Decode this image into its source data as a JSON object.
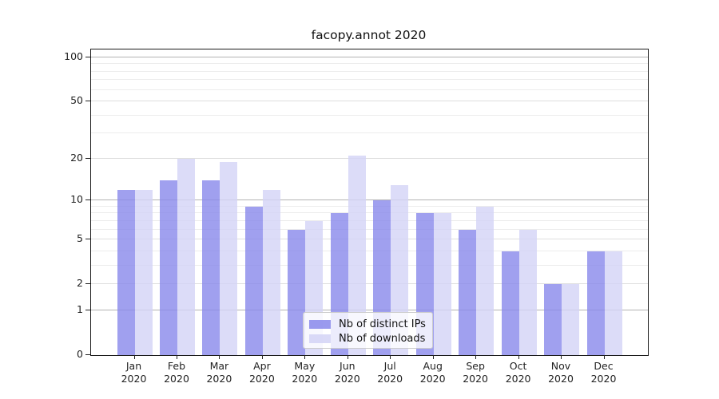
{
  "chart": {
    "title": "facopy.annot 2020"
  },
  "chart_data": {
    "type": "bar",
    "title": "facopy.annot 2020",
    "categories": [
      "Jan",
      "Feb",
      "Mar",
      "Apr",
      "May",
      "Jun",
      "Jul",
      "Aug",
      "Sep",
      "Oct",
      "Nov",
      "Dec"
    ],
    "category_year": "2020",
    "series": [
      {
        "name": "Nb of distinct IPs",
        "color": "#8888eb",
        "values": [
          12,
          14,
          14,
          9,
          6,
          8,
          10,
          8,
          6,
          4,
          2,
          4
        ]
      },
      {
        "name": "Nb of downloads",
        "color": "#d3d3f6",
        "values": [
          12,
          20,
          19,
          12,
          7,
          21,
          13,
          8,
          9,
          6,
          2,
          4
        ]
      }
    ],
    "yscale": "log1p",
    "yticks": [
      0,
      1,
      2,
      5,
      10,
      20,
      50,
      100
    ],
    "ytick_major": [
      1,
      10,
      100
    ],
    "ytick_mid": [
      2,
      5,
      20,
      50
    ],
    "ylim": [
      0,
      113
    ],
    "xlabel": "",
    "ylabel": "",
    "grid": true,
    "legend_position": "lower center"
  }
}
